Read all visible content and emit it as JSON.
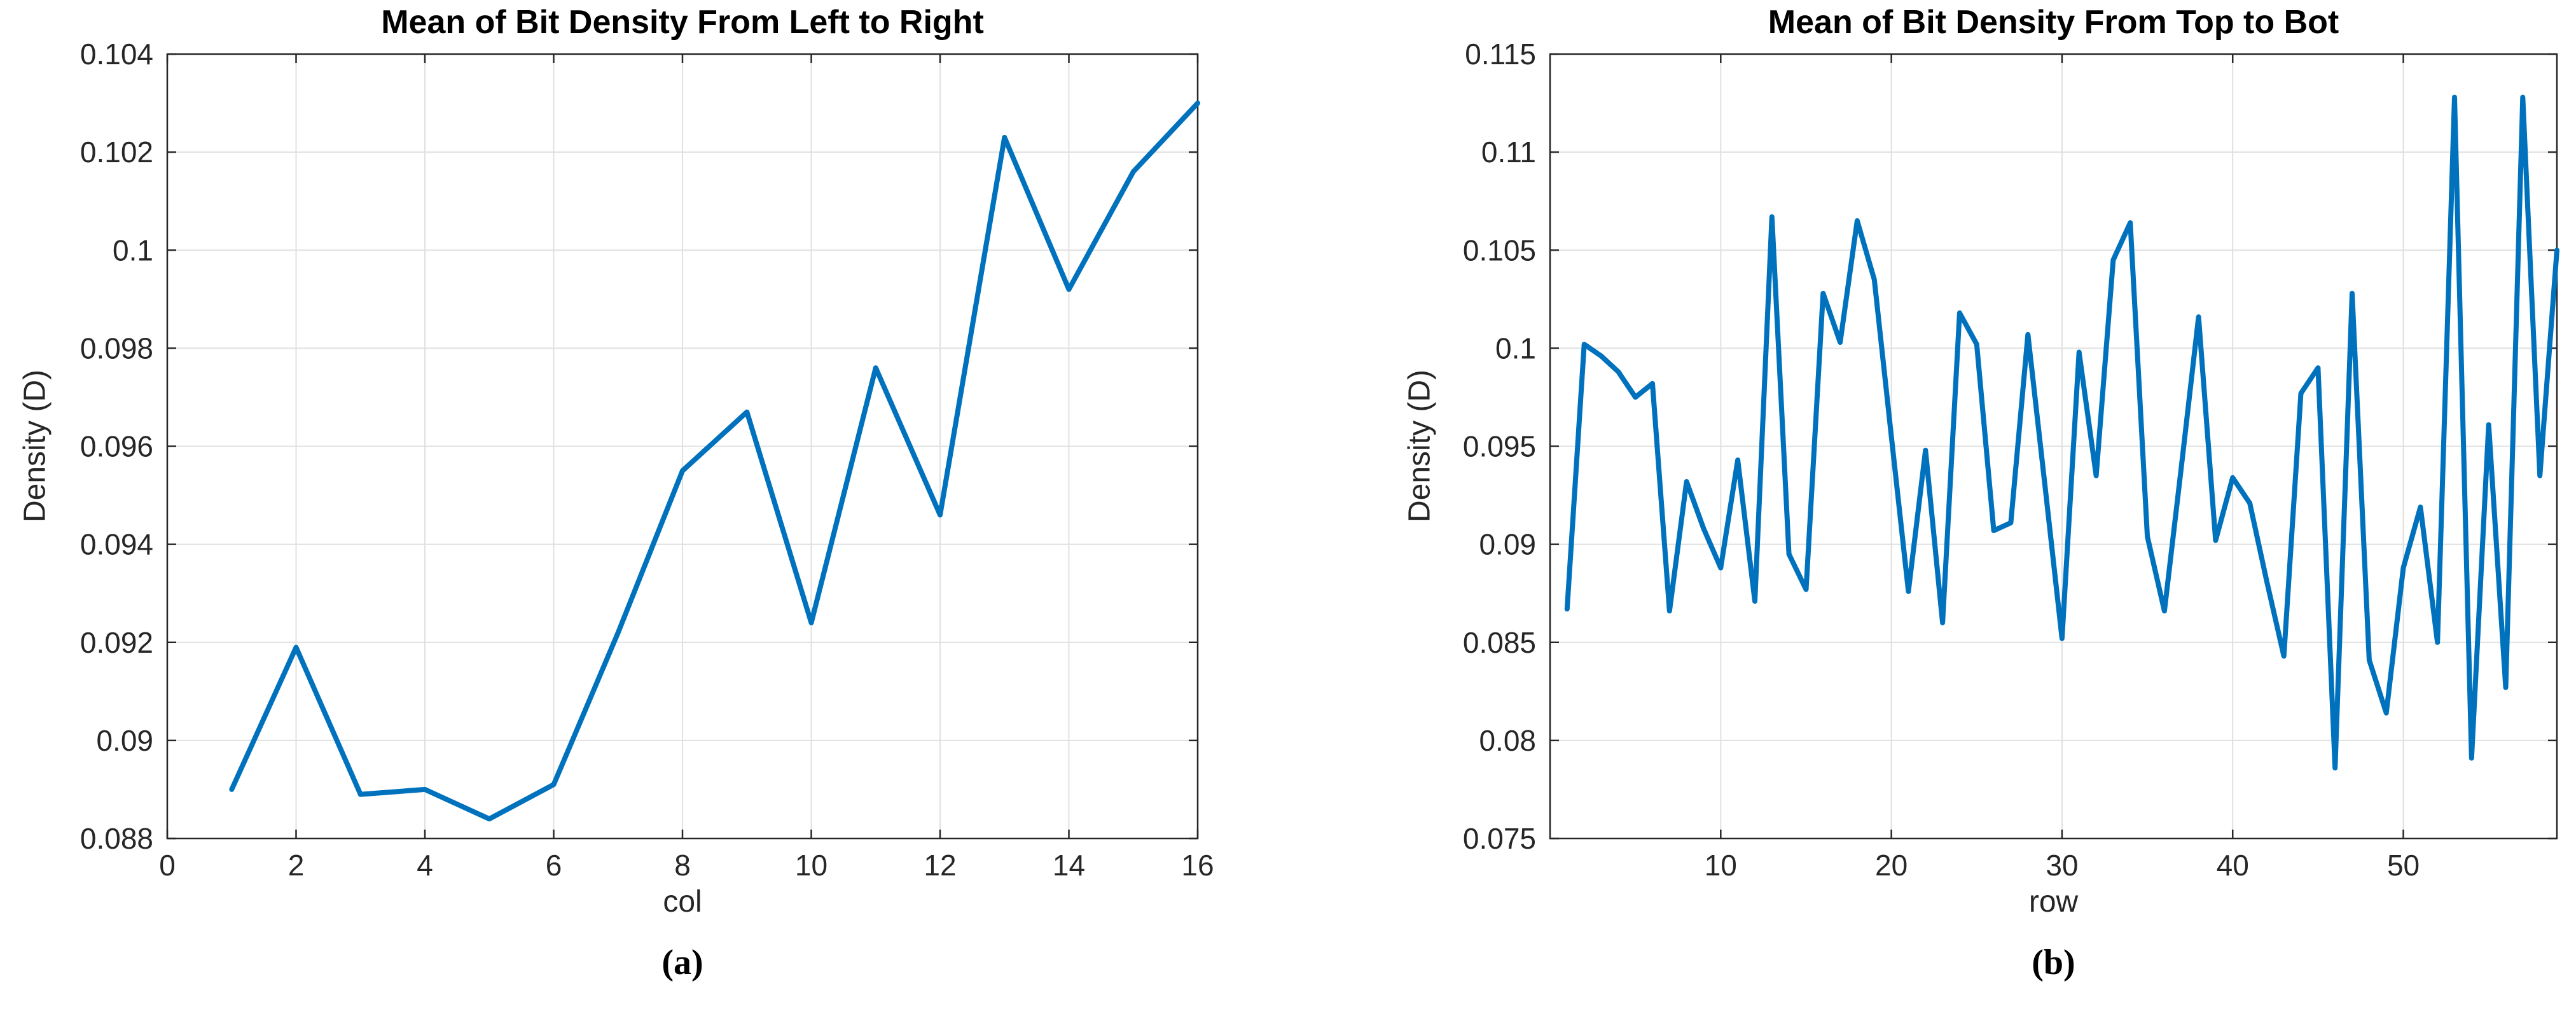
{
  "figure": {
    "background": "#ffffff"
  },
  "captions": {
    "a": "(a)",
    "b": "(b)"
  },
  "styles": {
    "line_color": "#0072BD",
    "axis_color": "#262626",
    "grid_color": "#e0e0e0",
    "tick_label_color": "#262626",
    "title_color": "#000000"
  },
  "chart_data": [
    {
      "type": "line",
      "title": "Mean of Bit Density From Left to Right",
      "xlabel": "col",
      "ylabel": "Density (D)",
      "xlim": [
        0,
        16
      ],
      "ylim": [
        0.088,
        0.104
      ],
      "grid": true,
      "legend": null,
      "xticks": [
        0,
        2,
        4,
        6,
        8,
        10,
        12,
        14,
        16
      ],
      "xtick_labels": [
        "0",
        "2",
        "4",
        "6",
        "8",
        "10",
        "12",
        "14",
        "16"
      ],
      "yticks": [
        0.088,
        0.09,
        0.092,
        0.094,
        0.096,
        0.098,
        0.1,
        0.102,
        0.104
      ],
      "ytick_labels": [
        "0.088",
        "0.09",
        "0.092",
        "0.094",
        "0.096",
        "0.098",
        "0.1",
        "0.102",
        "0.104"
      ],
      "x_start": 1,
      "x_step": 1,
      "values": [
        0.089,
        0.0919,
        0.0889,
        0.089,
        0.0884,
        0.0891,
        0.0922,
        0.0955,
        0.0967,
        0.0924,
        0.0976,
        0.0946,
        0.1023,
        0.0992,
        0.1016,
        0.103
      ]
    },
    {
      "type": "line",
      "title": "Mean of Bit Density From Top to Bot",
      "xlabel": "row",
      "ylabel": "Density (D)",
      "xlim": [
        0,
        59
      ],
      "ylim": [
        0.075,
        0.115
      ],
      "grid": true,
      "legend": null,
      "xticks": [
        10,
        20,
        30,
        40,
        50
      ],
      "xtick_labels": [
        "10",
        "20",
        "30",
        "40",
        "50"
      ],
      "yticks": [
        0.075,
        0.08,
        0.085,
        0.09,
        0.095,
        0.1,
        0.105,
        0.11,
        0.115
      ],
      "ytick_labels": [
        "0.075",
        "0.08",
        "0.085",
        "0.09",
        "0.095",
        "0.1",
        "0.105",
        "0.11",
        "0.115"
      ],
      "x_start": 1,
      "x_step": 1,
      "values": [
        0.0867,
        0.1002,
        0.0996,
        0.0988,
        0.0975,
        0.0982,
        0.0866,
        0.0932,
        0.0908,
        0.0888,
        0.0943,
        0.0871,
        0.1067,
        0.0895,
        0.0877,
        0.1028,
        0.1003,
        0.1065,
        0.1035,
        0.0955,
        0.0876,
        0.0948,
        0.086,
        0.1018,
        0.1002,
        0.0907,
        0.0911,
        0.1007,
        0.093,
        0.0852,
        0.0998,
        0.0935,
        0.1045,
        0.1064,
        0.0904,
        0.0866,
        0.094,
        0.1016,
        0.0902,
        0.0934,
        0.0921,
        0.0881,
        0.0843,
        0.0977,
        0.099,
        0.0786,
        0.1028,
        0.0841,
        0.0814,
        0.0888,
        0.0919,
        0.085,
        0.1128,
        0.0791,
        0.0961,
        0.0827,
        0.1128,
        0.0935,
        0.105
      ]
    }
  ]
}
